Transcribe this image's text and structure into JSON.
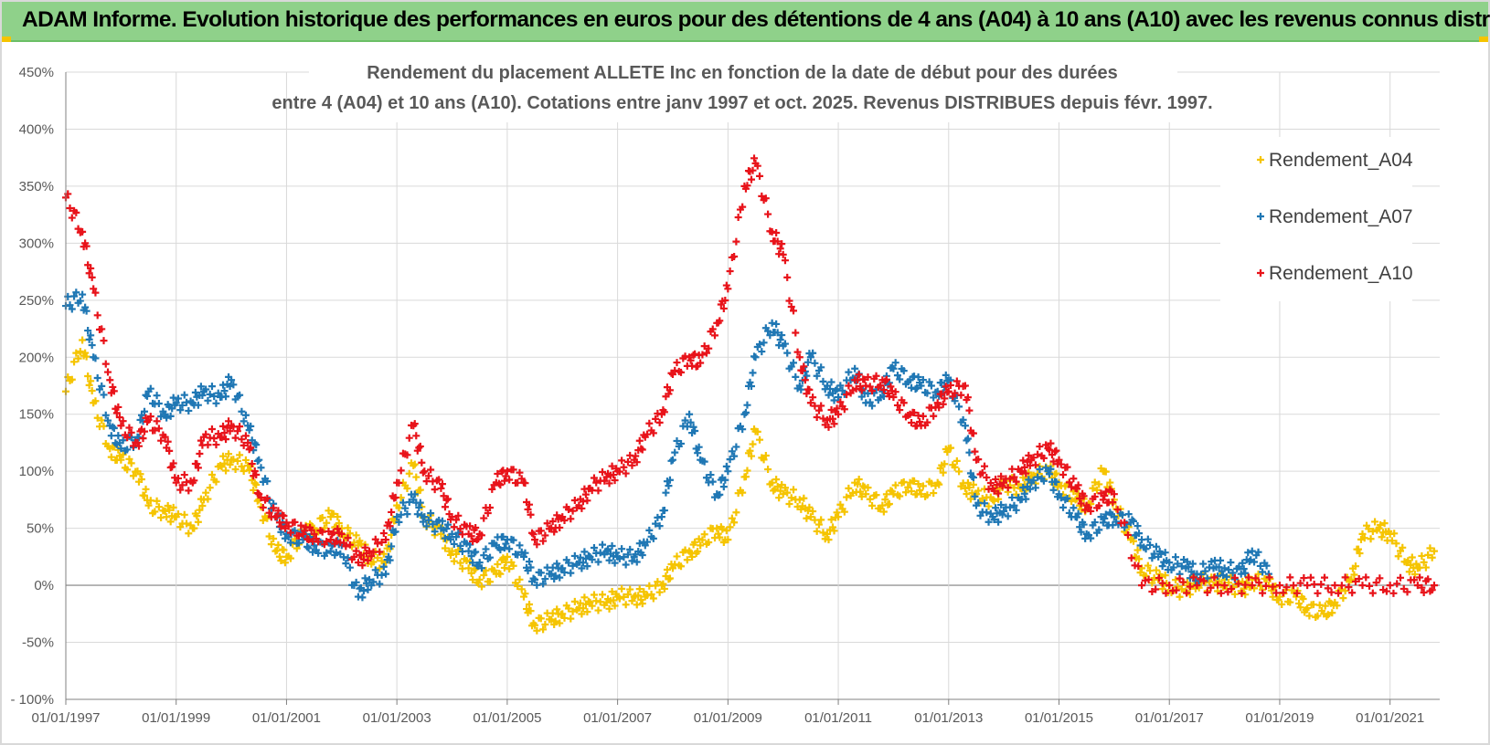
{
  "banner": {
    "title": "ADAM Informe. Evolution historique des performances en euros pour des détentions de 4 ans (A04) à 10 ans (A10) avec les revenus connus distribués"
  },
  "chart_data": {
    "type": "scatter",
    "title_line1": "Rendement du placement ALLETE Inc en fonction de la date de début pour des durées",
    "title_line2": "entre 4 (A04) et 10 ans (A10). Cotations entre janv 1997 et oct. 2025. Revenus DISTRIBUES depuis févr. 1997.",
    "xlim": [
      1997.0,
      2021.9
    ],
    "ylim": [
      -100,
      450
    ],
    "x_tick_values": [
      1997,
      1999,
      2001,
      2003,
      2005,
      2007,
      2009,
      2011,
      2013,
      2015,
      2017,
      2019,
      2021
    ],
    "x_tick_labels": [
      "01/01/1997",
      "01/01/1999",
      "01/01/2001",
      "01/01/2003",
      "01/01/2005",
      "01/01/2007",
      "01/01/2009",
      "01/01/2011",
      "01/01/2013",
      "01/01/2015",
      "01/01/2017",
      "01/01/2019",
      "01/01/2021"
    ],
    "y_tick_values": [
      -100,
      -50,
      0,
      50,
      100,
      150,
      200,
      250,
      300,
      350,
      400,
      450
    ],
    "y_tick_labels": [
      "- 100%",
      "-50%",
      "0%",
      "50%",
      "100%",
      "150%",
      "200%",
      "250%",
      "300%",
      "350%",
      "400%",
      "450%"
    ],
    "grid": true,
    "legend_position": "top-right",
    "marker": "+",
    "series": [
      {
        "name": "Rendement_A04",
        "color": "#f5c400",
        "x": [
          1997.0,
          1997.3,
          1997.5,
          1997.8,
          1998.0,
          1998.3,
          1998.5,
          1998.8,
          1999.0,
          1999.3,
          1999.5,
          1999.8,
          2000.0,
          2000.3,
          2000.5,
          2000.8,
          2001.0,
          2001.3,
          2001.5,
          2001.8,
          2002.0,
          2002.3,
          2002.5,
          2002.8,
          2003.0,
          2003.3,
          2003.5,
          2003.8,
          2004.0,
          2004.3,
          2004.5,
          2004.8,
          2005.0,
          2005.3,
          2005.5,
          2005.8,
          2006.0,
          2006.3,
          2006.5,
          2006.8,
          2007.0,
          2007.3,
          2007.5,
          2007.8,
          2008.0,
          2008.3,
          2008.5,
          2008.8,
          2009.0,
          2009.3,
          2009.5,
          2009.8,
          2010.0,
          2010.3,
          2010.5,
          2010.8,
          2011.0,
          2011.3,
          2011.5,
          2011.8,
          2012.0,
          2012.3,
          2012.5,
          2012.8,
          2013.0,
          2013.3,
          2013.5,
          2013.8,
          2014.0,
          2014.3,
          2014.5,
          2014.8,
          2015.0,
          2015.3,
          2015.5,
          2015.8,
          2016.0,
          2016.3,
          2016.5,
          2016.8,
          2017.0,
          2017.3,
          2017.5,
          2017.8,
          2018.0,
          2018.3,
          2018.5,
          2018.8,
          2019.0,
          2019.3,
          2019.5,
          2019.8,
          2020.0,
          2020.3,
          2020.5,
          2020.8,
          2021.0,
          2021.3,
          2021.5,
          2021.8
        ],
        "y": [
          170,
          215,
          160,
          120,
          110,
          100,
          70,
          65,
          60,
          50,
          75,
          105,
          110,
          105,
          75,
          30,
          25,
          45,
          50,
          60,
          50,
          35,
          25,
          20,
          70,
          105,
          60,
          45,
          30,
          15,
          5,
          10,
          25,
          -10,
          -35,
          -30,
          -25,
          -20,
          -15,
          -15,
          -10,
          -10,
          -10,
          0,
          15,
          30,
          35,
          50,
          40,
          95,
          135,
          90,
          80,
          75,
          60,
          45,
          60,
          90,
          80,
          70,
          80,
          90,
          80,
          90,
          120,
          85,
          80,
          75,
          90,
          85,
          95,
          100,
          90,
          75,
          70,
          100,
          75,
          40,
          15,
          5,
          0,
          -5,
          5,
          0,
          5,
          -5,
          5,
          0,
          -10,
          -10,
          -20,
          -25,
          -15,
          5,
          45,
          50,
          45,
          20,
          15,
          30
        ]
      },
      {
        "name": "Rendement_A07",
        "color": "#1f77b4",
        "x": [
          1997.0,
          1997.3,
          1997.5,
          1997.8,
          1998.0,
          1998.3,
          1998.5,
          1998.8,
          1999.0,
          1999.3,
          1999.5,
          1999.8,
          2000.0,
          2000.3,
          2000.5,
          2000.8,
          2001.0,
          2001.3,
          2001.5,
          2001.8,
          2002.0,
          2002.3,
          2002.5,
          2002.8,
          2003.0,
          2003.3,
          2003.5,
          2003.8,
          2004.0,
          2004.3,
          2004.5,
          2004.8,
          2005.0,
          2005.3,
          2005.5,
          2005.8,
          2006.0,
          2006.3,
          2006.5,
          2006.8,
          2007.0,
          2007.3,
          2007.5,
          2007.8,
          2008.0,
          2008.3,
          2008.5,
          2008.8,
          2009.0,
          2009.3,
          2009.5,
          2009.8,
          2010.0,
          2010.3,
          2010.5,
          2010.8,
          2011.0,
          2011.3,
          2011.5,
          2011.8,
          2012.0,
          2012.3,
          2012.5,
          2012.8,
          2013.0,
          2013.3,
          2013.5,
          2013.8,
          2014.0,
          2014.3,
          2014.5,
          2014.8,
          2015.0,
          2015.3,
          2015.5,
          2015.8,
          2016.0,
          2016.3,
          2016.5,
          2016.8,
          2017.0,
          2017.3,
          2017.5,
          2017.8,
          2018.0,
          2018.3,
          2018.5,
          2018.8
        ],
        "y": [
          245,
          255,
          200,
          140,
          120,
          130,
          170,
          150,
          160,
          160,
          170,
          165,
          180,
          140,
          110,
          60,
          45,
          40,
          35,
          30,
          35,
          -10,
          5,
          10,
          60,
          75,
          60,
          50,
          45,
          30,
          20,
          35,
          40,
          25,
          5,
          10,
          15,
          20,
          25,
          30,
          25,
          25,
          35,
          60,
          110,
          150,
          110,
          80,
          100,
          150,
          200,
          230,
          210,
          175,
          200,
          175,
          165,
          190,
          160,
          170,
          190,
          180,
          175,
          170,
          180,
          140,
          70,
          60,
          65,
          75,
          90,
          100,
          80,
          60,
          45,
          55,
          60,
          55,
          40,
          25,
          20,
          15,
          10,
          15,
          15,
          10,
          30,
          10
        ]
      },
      {
        "name": "Rendement_A10",
        "color": "#e8131a",
        "x": [
          1997.0,
          1997.3,
          1997.5,
          1997.8,
          1998.0,
          1998.3,
          1998.5,
          1998.8,
          1999.0,
          1999.3,
          1999.5,
          1999.8,
          2000.0,
          2000.3,
          2000.5,
          2000.8,
          2001.0,
          2001.3,
          2001.5,
          2001.8,
          2002.0,
          2002.3,
          2002.5,
          2002.8,
          2003.0,
          2003.3,
          2003.5,
          2003.8,
          2004.0,
          2004.3,
          2004.5,
          2004.8,
          2005.0,
          2005.3,
          2005.5,
          2005.8,
          2006.0,
          2006.3,
          2006.5,
          2006.8,
          2007.0,
          2007.3,
          2007.5,
          2007.8,
          2008.0,
          2008.3,
          2008.5,
          2008.8,
          2009.0,
          2009.3,
          2009.5,
          2009.8,
          2010.0,
          2010.3,
          2010.5,
          2010.8,
          2011.0,
          2011.3,
          2011.5,
          2011.8,
          2012.0,
          2012.3,
          2012.5,
          2012.8,
          2013.0,
          2013.3,
          2013.5,
          2013.8,
          2014.0,
          2014.3,
          2014.5,
          2014.8,
          2015.0,
          2015.3,
          2015.5,
          2015.8,
          2016.0,
          2016.5,
          2017.0,
          2017.5,
          2018.0,
          2018.5,
          2019.0,
          2019.5,
          2020.0,
          2020.5,
          2021.0,
          2021.5,
          2021.8
        ],
        "y": [
          340,
          310,
          260,
          180,
          140,
          125,
          145,
          130,
          90,
          90,
          130,
          130,
          140,
          125,
          80,
          60,
          55,
          45,
          45,
          40,
          45,
          20,
          30,
          40,
          90,
          140,
          100,
          85,
          60,
          45,
          45,
          90,
          100,
          90,
          40,
          50,
          60,
          70,
          85,
          95,
          100,
          110,
          130,
          150,
          185,
          200,
          195,
          230,
          260,
          350,
          370,
          310,
          290,
          200,
          160,
          145,
          150,
          180,
          175,
          180,
          165,
          150,
          140,
          160,
          170,
          175,
          110,
          85,
          90,
          100,
          110,
          120,
          110,
          85,
          70,
          75,
          80,
          0,
          0,
          0,
          0,
          0,
          0,
          0,
          0,
          0,
          0,
          0,
          0
        ]
      }
    ]
  }
}
